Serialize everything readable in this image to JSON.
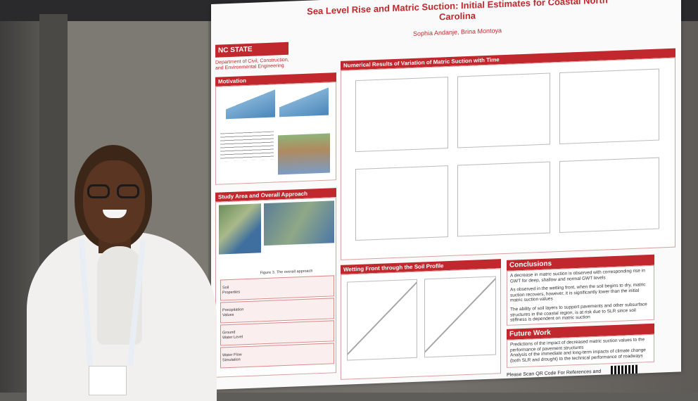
{
  "poster": {
    "title": "Sea Level Rise and Matric Suction: Initial Estimates for Coastal North Carolina",
    "authors": "Sophia Andanje, Brina Montoya",
    "logo": "NC STATE UNIVERSITY",
    "department": "Department of Civil, Construction, and Environmental Engineering",
    "sections": {
      "motivation": "Motivation",
      "study_area": "Study Area and Overall Approach",
      "numerical": "Numerical Results of Variation of Matric Suction with Time",
      "wetting": "Wetting Front through the Soil Profile",
      "conclusions": "Conclusions",
      "future": "Future Work"
    },
    "conclusions_text": [
      "A decrease in matric suction is observed with corresponding rise in GWT for deep, shallow and normal GWT levels",
      "As observed in the wetting front, when the soil begins to dry, matric suction recovers, however, it is significantly lower than the initial matric suction values",
      "The ability of soil layers to support pavements and other subsurface structures in the coastal region, is at risk due to SLR since soil stiffness is dependent on matric suction"
    ],
    "future_text": [
      "Predictions of the impact of decreased matric suction values to the performance of pavement structures",
      "Analysis of the immediate and long-term impacts of climate change (both SLR and drought) to the technical performance of roadways"
    ],
    "qr_text": "Please Scan QR Code For References and More Information",
    "approach_title": "Figure 3. The overall approach",
    "approach_rows": [
      "Soil Properties",
      "Precipitation Values",
      "Ground Water Level",
      "Water Flow Simulation"
    ]
  },
  "colors": {
    "accent": "#c0282d"
  }
}
